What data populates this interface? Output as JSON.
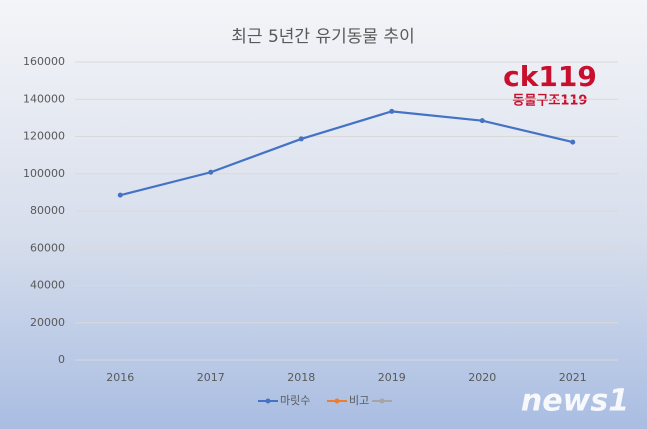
{
  "chart_data": {
    "type": "line",
    "title": "최근 5년간 유기동물 추이",
    "categories": [
      "2016",
      "2017",
      "2018",
      "2019",
      "2020",
      "2021"
    ],
    "series": [
      {
        "name": "마릿수",
        "color": "#4472c4",
        "values": [
          88500,
          100800,
          118700,
          133500,
          128500,
          117000
        ]
      },
      {
        "name": "비고",
        "color": "#ed7d31",
        "values": [
          null,
          null,
          null,
          null,
          null,
          null
        ]
      }
    ],
    "ylim": [
      0,
      160000
    ],
    "yticks": [
      0,
      20000,
      40000,
      60000,
      80000,
      100000,
      120000,
      140000,
      160000
    ],
    "grid": true,
    "legend": "bottom"
  },
  "logo": {
    "brand": "ck119",
    "caption": "동물구조119"
  },
  "watermark": "news1"
}
